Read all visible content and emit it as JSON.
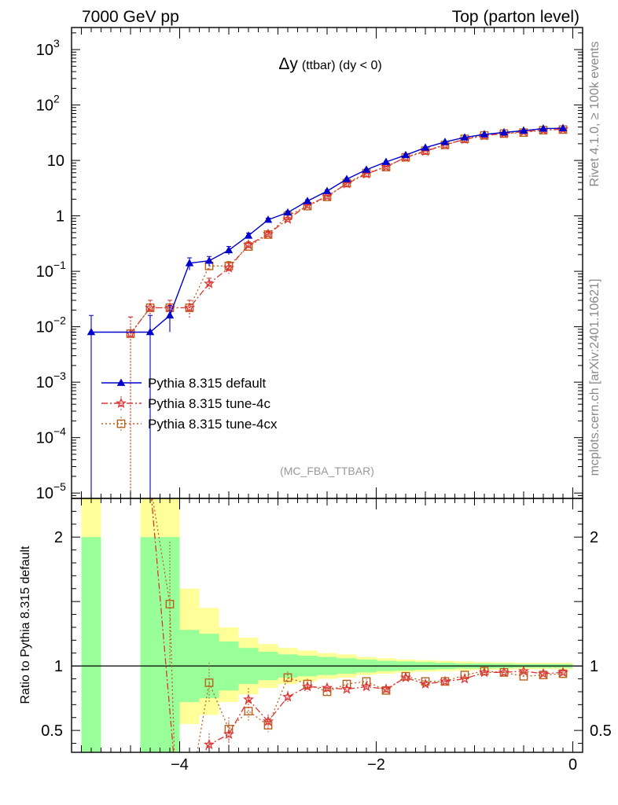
{
  "header": {
    "left": "7000 GeV pp",
    "right": "Top (parton level)"
  },
  "side": {
    "rivet": "Rivet 4.1.0, ≥ 100k events",
    "mcplots": "mcplots.cern.ch [arXiv:2401.10621]"
  },
  "chart_data": {
    "type": "line",
    "title": "Δy (ttbar) (dy < 0)",
    "title_main": "Δy",
    "title_sub": "(ttbar) (dy < 0)",
    "analysis_label": "(MC_FBA_TTBAR)",
    "xlim": [
      -5.1,
      0.1
    ],
    "xticks": [
      -4,
      -2,
      0
    ],
    "xtick_labels": [
      "−4",
      "−2",
      "0"
    ],
    "upper": {
      "yscale": "log",
      "ylim": [
        8e-06,
        2500
      ],
      "ytick_labels": [
        {
          "v": 1e-05,
          "base": "10",
          "exp": "−5"
        },
        {
          "v": 0.0001,
          "base": "10",
          "exp": "−4"
        },
        {
          "v": 0.001,
          "base": "10",
          "exp": "−3"
        },
        {
          "v": 0.01,
          "base": "10",
          "exp": "−2"
        },
        {
          "v": 0.1,
          "base": "10",
          "exp": "−1"
        },
        {
          "v": 1,
          "base": "1",
          "exp": ""
        },
        {
          "v": 10,
          "base": "10",
          "exp": ""
        },
        {
          "v": 100,
          "base": "10",
          "exp": "2"
        },
        {
          "v": 1000,
          "base": "10",
          "exp": "3"
        }
      ]
    },
    "lower": {
      "ylabel": "Ratio to Pythia 8.315 default",
      "ylim": [
        0.33,
        2.3
      ],
      "yticks": [
        0.5,
        1,
        2
      ],
      "ytick_labels": [
        "0.5",
        "1",
        "2"
      ],
      "reference": 1
    },
    "bins": [
      -5.0,
      -4.8,
      -4.6,
      -4.4,
      -4.2,
      -4.0,
      -3.8,
      -3.6,
      -3.4,
      -3.2,
      -3.0,
      -2.8,
      -2.6,
      -2.4,
      -2.2,
      -2.0,
      -1.8,
      -1.6,
      -1.4,
      -1.2,
      -1.0,
      -0.8,
      -0.6,
      -0.4,
      -0.2,
      0.0
    ],
    "ratio_bands": {
      "green": [
        [
          0,
          2.0
        ],
        null,
        null,
        [
          0,
          2.0
        ],
        [
          0,
          2.0
        ],
        [
          0.72,
          1.28
        ],
        [
          0.75,
          1.25
        ],
        [
          0.81,
          1.19
        ],
        [
          0.86,
          1.14
        ],
        [
          0.89,
          1.11
        ],
        [
          0.91,
          1.09
        ],
        [
          0.92,
          1.08
        ],
        [
          0.93,
          1.07
        ],
        [
          0.94,
          1.06
        ],
        [
          0.95,
          1.05
        ],
        [
          0.96,
          1.04
        ],
        [
          0.965,
          1.035
        ],
        [
          0.97,
          1.03
        ],
        [
          0.975,
          1.025
        ],
        [
          0.98,
          1.02
        ],
        [
          0.98,
          1.02
        ],
        [
          0.982,
          1.018
        ],
        [
          0.985,
          1.015
        ],
        [
          0.985,
          1.015
        ],
        [
          0.985,
          1.015
        ]
      ],
      "yellow": [
        [
          0,
          2.5
        ],
        null,
        null,
        [
          0,
          2.5
        ],
        [
          0,
          2.5
        ],
        [
          0.55,
          1.6
        ],
        [
          0.62,
          1.45
        ],
        [
          0.72,
          1.3
        ],
        [
          0.78,
          1.22
        ],
        [
          0.83,
          1.17
        ],
        [
          0.86,
          1.14
        ],
        [
          0.88,
          1.12
        ],
        [
          0.9,
          1.1
        ],
        [
          0.91,
          1.09
        ],
        [
          0.93,
          1.07
        ],
        [
          0.94,
          1.06
        ],
        [
          0.95,
          1.05
        ],
        [
          0.955,
          1.045
        ],
        [
          0.96,
          1.04
        ],
        [
          0.965,
          1.035
        ],
        [
          0.97,
          1.03
        ],
        [
          0.972,
          1.028
        ],
        [
          0.975,
          1.025
        ],
        [
          0.975,
          1.025
        ],
        [
          0.975,
          1.025
        ]
      ]
    },
    "series": [
      {
        "name": "Pythia 8.315 default",
        "color": "#0000cc",
        "marker": "triangle",
        "dash": "",
        "x": [
          -4.9,
          -4.3,
          -4.1,
          -3.9,
          -3.7,
          -3.5,
          -3.3,
          -3.1,
          -2.9,
          -2.7,
          -2.5,
          -2.3,
          -2.1,
          -1.9,
          -1.7,
          -1.5,
          -1.3,
          -1.1,
          -0.9,
          -0.7,
          -0.5,
          -0.3,
          -0.1
        ],
        "y": [
          0.008,
          0.008,
          0.016,
          0.14,
          0.155,
          0.24,
          0.44,
          0.85,
          1.15,
          1.85,
          2.8,
          4.6,
          6.8,
          9.4,
          12.5,
          17,
          21.5,
          26,
          29.5,
          32,
          34.5,
          37.5,
          38
        ],
        "err_lo": [
          0.0079999,
          0.0079999,
          0.008,
          0.035,
          0.03,
          0.04,
          0.05,
          0.06,
          0.07,
          0.1,
          0.12,
          0.15,
          0.2,
          0.25,
          0.3,
          0.35,
          0.4,
          0.45,
          0.5,
          0.5,
          0.5,
          0.55,
          0.55
        ],
        "err_hi": [
          0.008,
          0.008,
          0.008,
          0.035,
          0.03,
          0.04,
          0.05,
          0.06,
          0.07,
          0.1,
          0.12,
          0.15,
          0.2,
          0.25,
          0.3,
          0.35,
          0.4,
          0.45,
          0.5,
          0.5,
          0.5,
          0.55,
          0.55
        ],
        "ratio": [
          1,
          1,
          1,
          1,
          1,
          1,
          1,
          1,
          1,
          1,
          1,
          1,
          1,
          1,
          1,
          1,
          1,
          1,
          1,
          1,
          1,
          1,
          1
        ]
      },
      {
        "name": "Pythia 8.315 tune-4c",
        "color": "#dd3333",
        "marker": "star",
        "dash": "8,3,2,3",
        "x": [
          -4.5,
          -4.3,
          -4.1,
          -3.9,
          -3.7,
          -3.5,
          -3.3,
          -3.1,
          -2.9,
          -2.7,
          -2.5,
          -2.3,
          -2.1,
          -1.9,
          -1.7,
          -1.5,
          -1.3,
          -1.1,
          -0.9,
          -0.7,
          -0.5,
          -0.3,
          -0.1
        ],
        "y": [
          0.0075,
          0.022,
          0.022,
          0.022,
          0.06,
          0.115,
          0.3,
          0.47,
          0.87,
          1.55,
          2.25,
          3.8,
          5.7,
          7.7,
          11.3,
          14.6,
          19,
          24,
          28,
          30.5,
          33,
          35.5,
          36.5
        ],
        "err_lo": [
          0.0074999,
          0.008,
          0.008,
          0.008,
          0.015,
          0.025,
          0.04,
          0.05,
          0.06,
          0.08,
          0.1,
          0.12,
          0.15,
          0.2,
          0.25,
          0.3,
          0.35,
          0.4,
          0.45,
          0.45,
          0.5,
          0.5,
          0.5
        ],
        "err_hi": [
          0.0075,
          0.008,
          0.008,
          0.008,
          0.015,
          0.025,
          0.04,
          0.05,
          0.06,
          0.08,
          0.1,
          0.12,
          0.15,
          0.2,
          0.25,
          0.3,
          0.35,
          0.4,
          0.45,
          0.45,
          0.5,
          0.5,
          0.5
        ],
        "ratio": [
          null,
          null,
          null,
          null,
          0.39,
          0.47,
          0.74,
          0.57,
          0.76,
          0.84,
          0.83,
          0.82,
          0.84,
          0.82,
          0.91,
          0.86,
          0.88,
          0.9,
          0.95,
          0.95,
          0.96,
          0.94,
          0.95
        ]
      },
      {
        "name": "Pythia 8.315 tune-4cx",
        "color": "#b8621b",
        "marker": "square",
        "dash": "2,3",
        "x": [
          -4.5,
          -4.3,
          -4.1,
          -3.9,
          -3.7,
          -3.5,
          -3.3,
          -3.1,
          -2.9,
          -2.7,
          -2.5,
          -2.3,
          -2.1,
          -1.9,
          -1.7,
          -1.5,
          -1.3,
          -1.1,
          -0.9,
          -0.7,
          -0.5,
          -0.3,
          -0.1
        ],
        "y": [
          0.0075,
          0.022,
          0.022,
          0.022,
          0.125,
          0.125,
          0.28,
          0.46,
          1.0,
          1.5,
          2.2,
          3.9,
          5.9,
          7.6,
          11.4,
          15,
          19.1,
          24.5,
          28.3,
          30.5,
          31.8,
          35.2,
          36
        ],
        "err_lo": [
          0.0074999,
          0.008,
          0.008,
          0.008,
          0.025,
          0.025,
          0.04,
          0.05,
          0.06,
          0.08,
          0.1,
          0.12,
          0.15,
          0.2,
          0.25,
          0.3,
          0.35,
          0.4,
          0.45,
          0.45,
          0.5,
          0.5,
          0.5
        ],
        "err_hi": [
          0.0075,
          0.008,
          0.008,
          0.008,
          0.025,
          0.025,
          0.04,
          0.05,
          0.06,
          0.08,
          0.1,
          0.12,
          0.15,
          0.2,
          0.25,
          0.3,
          0.35,
          0.4,
          0.45,
          0.45,
          0.5,
          0.5,
          0.5
        ],
        "ratio": [
          null,
          null,
          1.48,
          null,
          0.87,
          0.51,
          0.65,
          0.54,
          0.91,
          0.86,
          0.8,
          0.86,
          0.88,
          0.81,
          0.92,
          0.88,
          0.88,
          0.93,
          0.96,
          0.95,
          0.92,
          0.93,
          0.94
        ]
      }
    ]
  }
}
